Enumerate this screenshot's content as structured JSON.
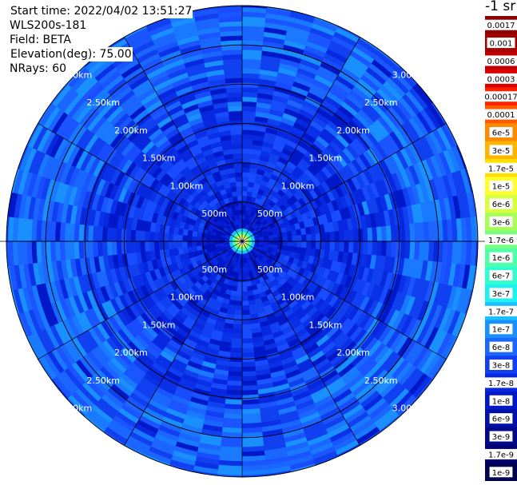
{
  "info": {
    "start_time": "Start time: 2022/04/02 13:51:27",
    "instrument": "WLS200s-181",
    "field": "Field: BETA",
    "elevation_label": "Elevation(deg):",
    "elevation_value": "75.00",
    "nrays": "NRays: 60"
  },
  "colorbar": {
    "title": "-1 sr",
    "labels": [
      "0.0017",
      "0.001",
      "0.0006",
      "0.0003",
      "0.00017",
      "0.0001",
      "6e-5",
      "3e-5",
      "1.7e-5",
      "1e-5",
      "6e-6",
      "3e-6",
      "1.7e-6",
      "1e-6",
      "6e-7",
      "3e-7",
      "1.7e-7",
      "1e-7",
      "6e-8",
      "3e-8",
      "1.7e-8",
      "1e-8",
      "6e-9",
      "3e-9",
      "1.7e-9",
      "1e-9"
    ],
    "colors": [
      "#8b0000",
      "#a30000",
      "#c00000",
      "#dd0000",
      "#ff2000",
      "#ff5a00",
      "#ff8a00",
      "#ffb400",
      "#ffe000",
      "#ffff30",
      "#d8ff40",
      "#a8ff58",
      "#78ff80",
      "#50ffa8",
      "#30ffd0",
      "#20f0f0",
      "#1ac0ff",
      "#1a90ff",
      "#1a66ff",
      "#1040f0",
      "#0828e0",
      "#0018c8",
      "#0010a8",
      "#00088a",
      "#000070",
      "#00004f"
    ]
  },
  "chart_data": {
    "type": "heatmap",
    "subtype": "polar PPI scan",
    "field": "BETA",
    "elevation_deg": 75.0,
    "n_rays": 60,
    "range_max_km": 3.0,
    "range_rings_km": [
      0.5,
      1.0,
      1.5,
      2.0,
      2.5,
      3.0
    ],
    "range_ring_labels": [
      "500m",
      "1.00km",
      "1.50km",
      "2.00km",
      "2.50km",
      "3.00km"
    ],
    "spoke_angles_deg": [
      0,
      30,
      60,
      90,
      120,
      150,
      180,
      210,
      240,
      270,
      300,
      330
    ],
    "value_bands": [
      {
        "range_km": [
          0.0,
          0.1
        ],
        "beta": "1e-5"
      },
      {
        "range_km": [
          0.1,
          0.4
        ],
        "beta": "1e-8"
      },
      {
        "range_km": [
          0.4,
          2.2
        ],
        "beta": "6e-9"
      },
      {
        "range_km": [
          2.2,
          3.0
        ],
        "beta": "1e-8"
      }
    ],
    "colormap": "cbar",
    "grid": true
  }
}
